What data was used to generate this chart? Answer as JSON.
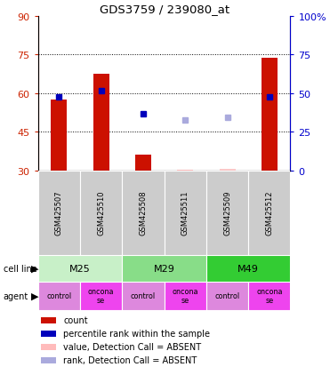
{
  "title": "GDS3759 / 239080_at",
  "samples": [
    "GSM425507",
    "GSM425510",
    "GSM425508",
    "GSM425511",
    "GSM425509",
    "GSM425512"
  ],
  "cell_lines": [
    {
      "label": "M25",
      "span": [
        0,
        2
      ],
      "color": "#c8f0c8"
    },
    {
      "label": "M29",
      "span": [
        2,
        4
      ],
      "color": "#88dd88"
    },
    {
      "label": "M49",
      "span": [
        4,
        6
      ],
      "color": "#33cc33"
    }
  ],
  "bar_values": [
    57.5,
    67.5,
    36.0,
    30.3,
    30.5,
    73.5
  ],
  "bar_colors": [
    "#cc1100",
    "#cc1100",
    "#cc1100",
    "#ffbbbb",
    "#ffcccc",
    "#cc1100"
  ],
  "dot_values": [
    58.5,
    61.0,
    52.0,
    49.5,
    50.5,
    58.5
  ],
  "dot_colors": [
    "#0000bb",
    "#0000bb",
    "#0000bb",
    "#aaaadd",
    "#aaaadd",
    "#0000bb"
  ],
  "ylim_left": [
    30,
    90
  ],
  "ylim_right": [
    0,
    100
  ],
  "yticks_left": [
    30,
    45,
    60,
    75,
    90
  ],
  "yticks_right": [
    0,
    25,
    50,
    75,
    100
  ],
  "ytick_labels_right": [
    "0",
    "25",
    "50",
    "75",
    "100%"
  ],
  "hlines": [
    45,
    60,
    75
  ],
  "bar_bottom": 30,
  "left_color": "#cc2200",
  "right_color": "#0000cc",
  "agent_colors": [
    "#dd88dd",
    "#ee44ee",
    "#dd88dd",
    "#ee44ee",
    "#dd88dd",
    "#ee44ee"
  ],
  "agent_labels": [
    "control",
    "oncona\nse",
    "control",
    "oncona\nse",
    "control",
    "oncona\nse"
  ],
  "legend_items": [
    {
      "label": "count",
      "color": "#cc1100"
    },
    {
      "label": "percentile rank within the sample",
      "color": "#0000bb"
    },
    {
      "label": "value, Detection Call = ABSENT",
      "color": "#ffbbbb"
    },
    {
      "label": "rank, Detection Call = ABSENT",
      "color": "#aaaadd"
    }
  ],
  "sample_bg_color": "#cccccc",
  "agent_control_color": "#dd88dd",
  "agent_onconase_color": "#ee44ee"
}
